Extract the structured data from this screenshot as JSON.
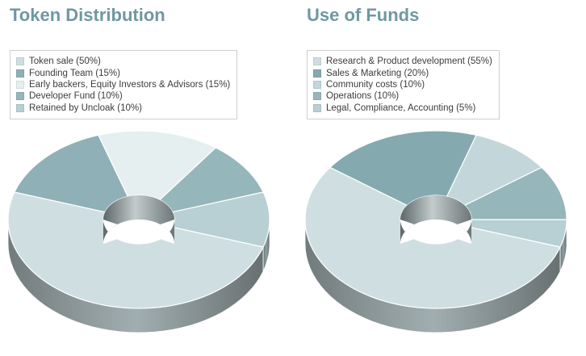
{
  "chart_data": [
    {
      "type": "pie",
      "style": "3d-donut",
      "title": "Token Distribution",
      "categories": [
        "Token sale",
        "Founding Team",
        "Early backers, Equity Investors & Advisors",
        "Developer Fund",
        "Retained by Uncloak"
      ],
      "values": [
        50,
        15,
        15,
        10,
        10
      ],
      "legend_labels": [
        "Token sale (50%)",
        "Founding Team (15%)",
        "Early backers, Equity Investors & Advisors (15%)",
        "Developer Fund (10%)",
        "Retained by Uncloak (10%)"
      ],
      "colors": [
        "#cfdfe1",
        "#8eb0b6",
        "#e6eff0",
        "#95b6bb",
        "#b8cfd3"
      ],
      "legend_position": "top-left"
    },
    {
      "type": "pie",
      "style": "3d-donut",
      "title": "Use of Funds",
      "categories": [
        "Research & Product development",
        "Sales & Marketing",
        "Community costs",
        "Operations",
        "Legal, Compliance, Accounting"
      ],
      "values": [
        55,
        20,
        10,
        10,
        5
      ],
      "legend_labels": [
        "Research & Product development (55%)",
        "Sales & Marketing (20%)",
        "Community costs (10%)",
        "Operations (10%)",
        "Legal, Compliance, Accounting (5%)"
      ],
      "colors": [
        "#cfdfe1",
        "#84a9af",
        "#c3d7da",
        "#95b6bb",
        "#b8cfd3"
      ],
      "legend_position": "top-left"
    }
  ]
}
